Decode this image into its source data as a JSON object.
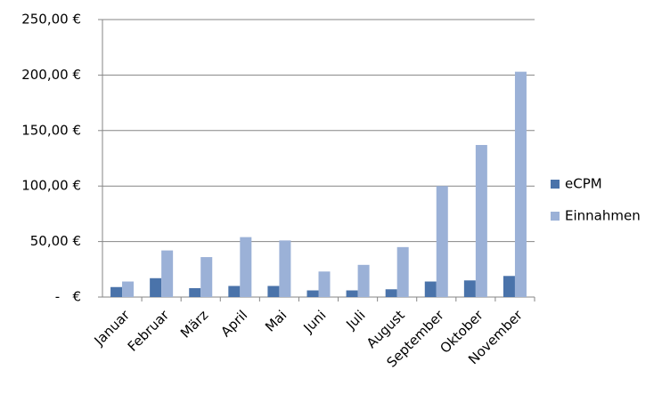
{
  "chart_data": {
    "type": "bar",
    "categories": [
      "Januar",
      "Februar",
      "März",
      "April",
      "Mai",
      "Juni",
      "Juli",
      "August",
      "September",
      "Oktober",
      "November"
    ],
    "series": [
      {
        "name": "eCPM",
        "color": "#4a73aa",
        "values": [
          9,
          17,
          8,
          10,
          10,
          6,
          6,
          7,
          14,
          15,
          19
        ]
      },
      {
        "name": "Einnahmen",
        "color": "#9bb1d7",
        "values": [
          14,
          42,
          36,
          54,
          51,
          23,
          29,
          45,
          100,
          137,
          203
        ]
      }
    ],
    "ylim": [
      0,
      250
    ],
    "yticks": [
      {
        "value": 0,
        "label": "-   €"
      },
      {
        "value": 50,
        "label": "50,00 €"
      },
      {
        "value": 100,
        "label": "100,00 €"
      },
      {
        "value": 150,
        "label": "150,00 €"
      },
      {
        "value": 200,
        "label": "200,00 €"
      },
      {
        "value": 250,
        "label": "250,00 €"
      }
    ],
    "grid": true,
    "legend": "right"
  }
}
